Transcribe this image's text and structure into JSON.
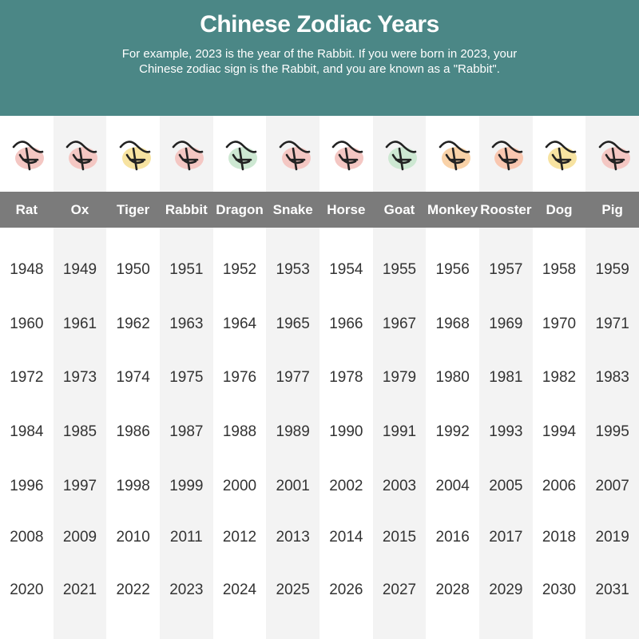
{
  "header": {
    "title": "Chinese Zodiac Years",
    "subtitle": [
      "For example, 2023 is the year of the Rabbit. If you were born in 2023, your",
      "Chinese zodiac sign is the Rabbit, and you are known as a \"Rabbit\"."
    ]
  },
  "table": {
    "columns": [
      "Rat",
      "Ox",
      "Tiger",
      "Rabbit",
      "Dragon",
      "Snake",
      "Horse",
      "Goat",
      "Monkey",
      "Rooster",
      "Dog",
      "Pig"
    ],
    "rows": [
      [
        1948,
        1949,
        1950,
        1951,
        1952,
        1953,
        1954,
        1955,
        1956,
        1957,
        1958,
        1959
      ],
      [
        1960,
        1961,
        1962,
        1963,
        1964,
        1965,
        1966,
        1967,
        1968,
        1969,
        1970,
        1971
      ],
      [
        1972,
        1973,
        1974,
        1975,
        1976,
        1977,
        1978,
        1979,
        1980,
        1981,
        1982,
        1983
      ],
      [
        1984,
        1985,
        1986,
        1987,
        1988,
        1989,
        1990,
        1991,
        1992,
        1993,
        1994,
        1995
      ],
      [
        1996,
        1997,
        1998,
        1999,
        2000,
        2001,
        2002,
        2003,
        2004,
        2005,
        2006,
        2007
      ],
      [
        2008,
        2009,
        2010,
        2011,
        2012,
        2013,
        2014,
        2015,
        2016,
        2017,
        2018,
        2019
      ],
      [
        2020,
        2021,
        2022,
        2023,
        2024,
        2025,
        2026,
        2027,
        2028,
        2029,
        2030,
        2031
      ]
    ]
  }
}
